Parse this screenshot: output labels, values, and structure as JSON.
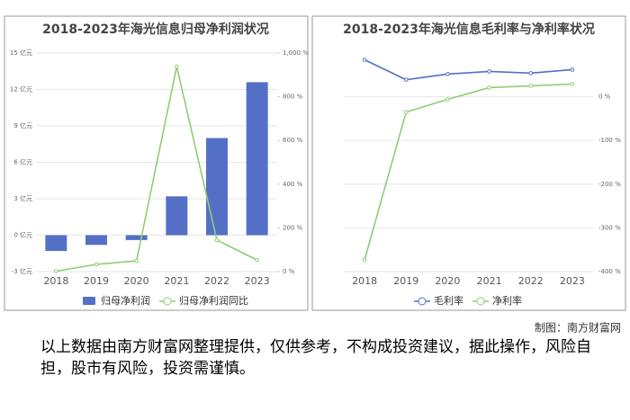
{
  "chart_data": [
    {
      "type": "combo",
      "title": "2018-2023年海光信息归母净利润状况",
      "categories": [
        "2018",
        "2019",
        "2020",
        "2021",
        "2022",
        "2023"
      ],
      "series": [
        {
          "name": "归母净利润",
          "type": "bar",
          "color": "#5470c6",
          "values": [
            -1.3,
            -0.8,
            -0.4,
            3.2,
            8.0,
            12.6
          ]
        },
        {
          "name": "归母净利润同比",
          "type": "line",
          "axis": "y2",
          "color": "#91cc75",
          "values": [
            2,
            33,
            49,
            938,
            144,
            53
          ]
        }
      ],
      "ylim": [
        -3,
        15
      ],
      "yticks": [
        {
          "value": -3,
          "label": "-3 亿元"
        },
        {
          "value": 0,
          "label": "0 亿元"
        },
        {
          "value": 3,
          "label": "3 亿元"
        },
        {
          "value": 6,
          "label": "6 亿元"
        },
        {
          "value": 9,
          "label": "9 亿元"
        },
        {
          "value": 12,
          "label": "12 亿元"
        },
        {
          "value": 15,
          "label": "15 亿元"
        }
      ],
      "y2lim": [
        0,
        1000
      ],
      "y2ticks": [
        {
          "value": 0,
          "label": "0 %"
        },
        {
          "value": 200,
          "label": "200 %"
        },
        {
          "value": 400,
          "label": "400 %"
        },
        {
          "value": 600,
          "label": "600 %"
        },
        {
          "value": 800,
          "label": "800 %"
        },
        {
          "value": 1000,
          "label": "1,000 %"
        }
      ]
    },
    {
      "type": "line",
      "title": "2018-2023年海光信息毛利率与净利率状况",
      "categories": [
        "2018",
        "2019",
        "2020",
        "2021",
        "2022",
        "2023"
      ],
      "series": [
        {
          "name": "毛利率",
          "type": "line",
          "color": "#5470c6",
          "values": [
            84.5,
            39,
            52,
            58,
            54,
            62
          ]
        },
        {
          "name": "净利率",
          "type": "line",
          "color": "#91cc75",
          "values": [
            -373,
            -35,
            -6,
            21,
            25,
            29
          ]
        }
      ],
      "ylim": [
        -400,
        100
      ],
      "yticks": [
        {
          "value": -400,
          "label": "-400 %"
        },
        {
          "value": -300,
          "label": "-300 %"
        },
        {
          "value": -200,
          "label": "-200 %"
        },
        {
          "value": -100,
          "label": "-100 %"
        },
        {
          "value": 0,
          "label": "0 %"
        }
      ]
    }
  ],
  "source": "制图：南方财富网",
  "disclaimer": "以上数据由南方财富网整理提供，仅供参考，不构成投资建议，据此操作，风险自担，股市有风险，投资需谨慎。"
}
